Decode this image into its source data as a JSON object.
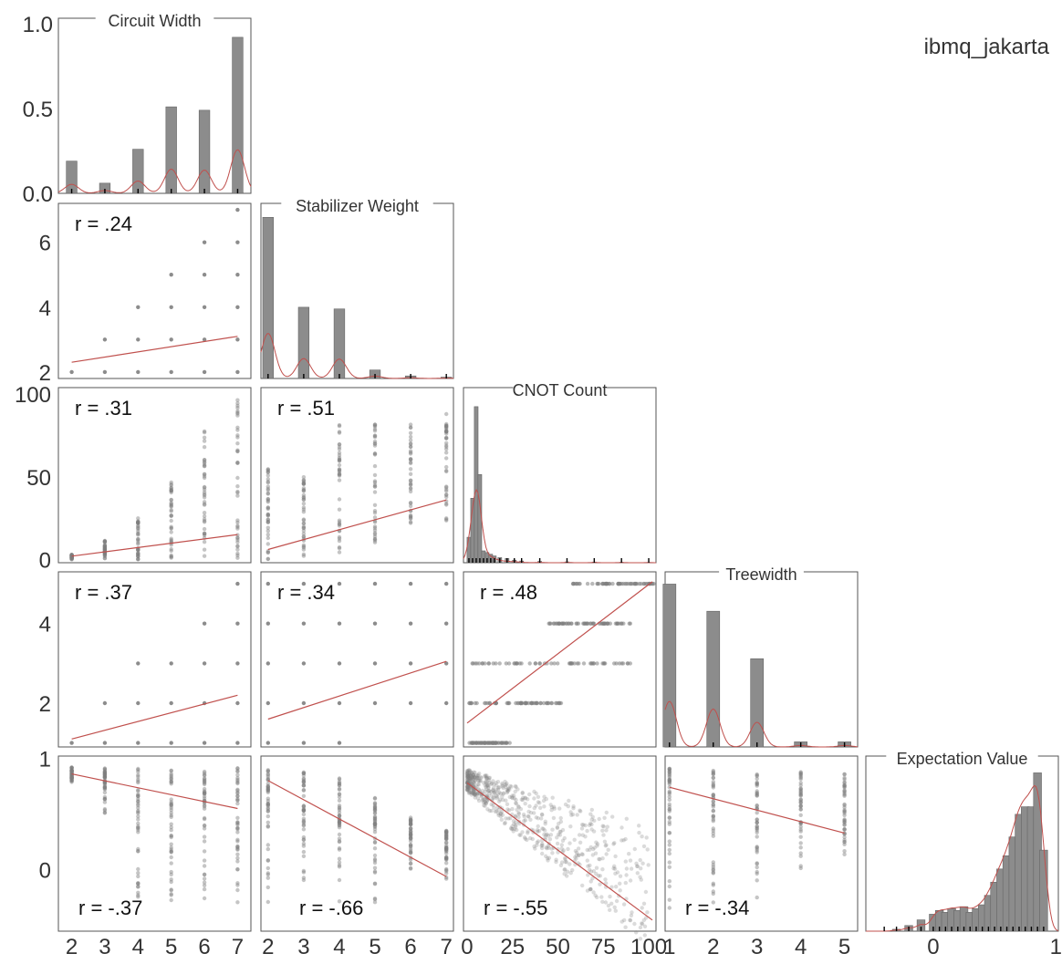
{
  "device_label": "ibmq_jakarta",
  "colors": {
    "bar": "#8c8c8c",
    "point": "#7f7f7f",
    "fit_line": "#c0504d",
    "axis": "#555555",
    "text": "#333333"
  },
  "chart_data": {
    "type": "pair-grid",
    "variables": [
      {
        "name": "Circuit Width",
        "ticks": [
          2,
          3,
          4,
          5,
          6,
          7
        ],
        "range": [
          1.6,
          7.4
        ]
      },
      {
        "name": "Stabilizer Weight",
        "ticks": [
          2,
          4,
          6
        ],
        "range": [
          1.8,
          7.2
        ]
      },
      {
        "name": "CNOT Count",
        "ticks": [
          0,
          25,
          50,
          75,
          100
        ],
        "range": [
          -2,
          104
        ]
      },
      {
        "name": "Treewidth",
        "ticks": [
          2,
          4
        ],
        "range": [
          0.9,
          5.3
        ]
      },
      {
        "name": "Expectation Value",
        "ticks": [
          0,
          1
        ],
        "range": [
          -0.55,
          1.02
        ]
      }
    ],
    "x_tick_labels": [
      [
        "2",
        "3",
        "4",
        "5",
        "6",
        "7"
      ],
      [
        "2",
        "3",
        "4",
        "5",
        "6",
        "7"
      ],
      [
        "0",
        "25",
        "50",
        "75",
        "100"
      ],
      [
        "1",
        "2",
        "3",
        "4",
        "5"
      ],
      [
        "0",
        "1"
      ]
    ],
    "diag_y_tick_labels": [
      "0.0",
      "0.5",
      "1.0"
    ],
    "y_tick_labels": [
      [
        "2",
        "4",
        "6"
      ],
      [
        "0",
        "50",
        "100"
      ],
      [
        "2",
        "4"
      ],
      [
        "0",
        "1"
      ]
    ],
    "correlations": [
      {
        "row": 1,
        "col": 0,
        "text": "r = .24"
      },
      {
        "row": 2,
        "col": 0,
        "text": "r = .31"
      },
      {
        "row": 2,
        "col": 1,
        "text": "r = .51"
      },
      {
        "row": 3,
        "col": 0,
        "text": "r = .37"
      },
      {
        "row": 3,
        "col": 1,
        "text": "r = .34"
      },
      {
        "row": 3,
        "col": 2,
        "text": "r = .48"
      },
      {
        "row": 4,
        "col": 0,
        "text": "r = -.37"
      },
      {
        "row": 4,
        "col": 1,
        "text": "r = -.66"
      },
      {
        "row": 4,
        "col": 2,
        "text": "r = -.55"
      },
      {
        "row": 4,
        "col": 3,
        "text": "r = -.34"
      }
    ],
    "histograms": [
      {
        "var": 0,
        "bins": [
          2,
          3,
          4,
          5,
          6,
          7
        ],
        "density": [
          0.19,
          0.06,
          0.26,
          0.51,
          0.49,
          0.92
        ],
        "ylim": [
          0,
          1.0
        ]
      },
      {
        "var": 1,
        "bins": [
          2,
          3,
          4,
          5,
          6,
          7
        ],
        "density": [
          0.95,
          0.42,
          0.41,
          0.05,
          0.015,
          0.008
        ],
        "ylim": [
          0,
          1.0
        ]
      },
      {
        "var": 2,
        "bins": [
          1,
          3,
          5,
          7,
          9,
          11,
          13,
          15,
          18,
          22,
          26,
          30,
          40,
          55,
          70,
          85,
          100
        ],
        "density": [
          0.15,
          0.38,
          0.92,
          0.52,
          0.07,
          0.06,
          0.05,
          0.04,
          0.03,
          0.025,
          0.015,
          0.01,
          0.008,
          0.005,
          0.004,
          0.003,
          0.002
        ],
        "ylim": [
          0,
          1.0
        ]
      },
      {
        "var": 3,
        "bins": [
          1,
          2,
          3,
          4,
          5
        ],
        "density": [
          0.96,
          0.8,
          0.52,
          0.03,
          0.03
        ],
        "ylim": [
          0,
          1.0
        ]
      },
      {
        "var": 4,
        "bins": [
          -0.4,
          -0.3,
          -0.2,
          -0.1,
          0.0,
          0.05,
          0.1,
          0.15,
          0.2,
          0.25,
          0.3,
          0.35,
          0.4,
          0.45,
          0.5,
          0.55,
          0.6,
          0.65,
          0.7,
          0.75,
          0.8,
          0.85,
          0.9
        ],
        "density": [
          0.0,
          0.01,
          0.03,
          0.06,
          0.09,
          0.11,
          0.1,
          0.12,
          0.11,
          0.13,
          0.1,
          0.12,
          0.14,
          0.19,
          0.26,
          0.33,
          0.4,
          0.5,
          0.62,
          0.66,
          0.66,
          0.84,
          0.43
        ],
        "ylim": [
          0,
          0.9
        ]
      }
    ],
    "fit_lines": [
      {
        "row": 1,
        "col": 0,
        "from": [
          2,
          2.3
        ],
        "to": [
          7,
          3.1
        ]
      },
      {
        "row": 2,
        "col": 0,
        "from": [
          2,
          2
        ],
        "to": [
          7,
          15
        ]
      },
      {
        "row": 2,
        "col": 1,
        "from": [
          2,
          6
        ],
        "to": [
          7,
          36
        ]
      },
      {
        "row": 3,
        "col": 0,
        "from": [
          2,
          1.1
        ],
        "to": [
          7,
          2.2
        ]
      },
      {
        "row": 3,
        "col": 1,
        "from": [
          2,
          1.6
        ],
        "to": [
          7,
          3.05
        ]
      },
      {
        "row": 3,
        "col": 2,
        "from": [
          0,
          1.5
        ],
        "to": [
          102,
          5.05
        ]
      },
      {
        "row": 4,
        "col": 0,
        "from": [
          2,
          0.86
        ],
        "to": [
          7,
          0.55
        ]
      },
      {
        "row": 4,
        "col": 1,
        "from": [
          2,
          0.8
        ],
        "to": [
          7,
          -0.06
        ]
      },
      {
        "row": 4,
        "col": 2,
        "from": [
          0,
          0.78
        ],
        "to": [
          102,
          -0.45
        ]
      },
      {
        "row": 4,
        "col": 3,
        "from": [
          1,
          0.74
        ],
        "to": [
          5,
          0.33
        ]
      }
    ]
  }
}
